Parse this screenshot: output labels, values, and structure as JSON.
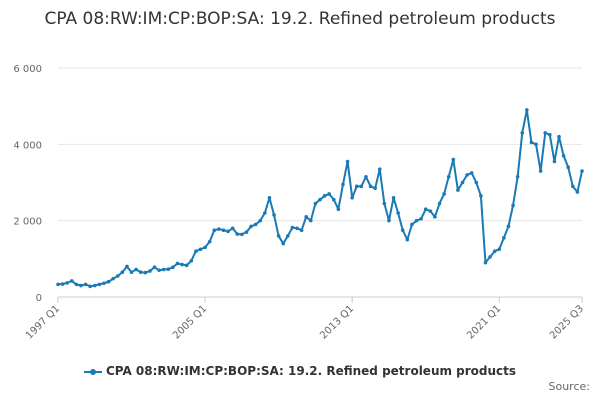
{
  "chart_data": {
    "type": "line",
    "title": "CPA 08:RW:IM:CP:BOP:SA: 19.2. Refined petroleum products",
    "xlabel": "",
    "ylabel": "",
    "ylim": [
      0,
      6000
    ],
    "yticks": [
      0,
      2000,
      4000,
      6000
    ],
    "ytick_labels": [
      "0",
      "2 000",
      "4 000",
      "6 000"
    ],
    "xtick_labels": [
      "1997 Q1",
      "2005 Q1",
      "2013 Q1",
      "2021 Q1",
      "2025 Q3"
    ],
    "xtick_indices": [
      0,
      32,
      64,
      96,
      114
    ],
    "grid": true,
    "legend_position": "bottom",
    "color": "#1a7ab5",
    "x": [
      "1997 Q1",
      "1997 Q2",
      "1997 Q3",
      "1997 Q4",
      "1998 Q1",
      "1998 Q2",
      "1998 Q3",
      "1998 Q4",
      "1999 Q1",
      "1999 Q2",
      "1999 Q3",
      "1999 Q4",
      "2000 Q1",
      "2000 Q2",
      "2000 Q3",
      "2000 Q4",
      "2001 Q1",
      "2001 Q2",
      "2001 Q3",
      "2001 Q4",
      "2002 Q1",
      "2002 Q2",
      "2002 Q3",
      "2002 Q4",
      "2003 Q1",
      "2003 Q2",
      "2003 Q3",
      "2003 Q4",
      "2004 Q1",
      "2004 Q2",
      "2004 Q3",
      "2004 Q4",
      "2005 Q1",
      "2005 Q2",
      "2005 Q3",
      "2005 Q4",
      "2006 Q1",
      "2006 Q2",
      "2006 Q3",
      "2006 Q4",
      "2007 Q1",
      "2007 Q2",
      "2007 Q3",
      "2007 Q4",
      "2008 Q1",
      "2008 Q2",
      "2008 Q3",
      "2008 Q4",
      "2009 Q1",
      "2009 Q2",
      "2009 Q3",
      "2009 Q4",
      "2010 Q1",
      "2010 Q2",
      "2010 Q3",
      "2010 Q4",
      "2011 Q1",
      "2011 Q2",
      "2011 Q3",
      "2011 Q4",
      "2012 Q1",
      "2012 Q2",
      "2012 Q3",
      "2012 Q4",
      "2013 Q1",
      "2013 Q2",
      "2013 Q3",
      "2013 Q4",
      "2014 Q1",
      "2014 Q2",
      "2014 Q3",
      "2014 Q4",
      "2015 Q1",
      "2015 Q2",
      "2015 Q3",
      "2015 Q4",
      "2016 Q1",
      "2016 Q2",
      "2016 Q3",
      "2016 Q4",
      "2017 Q1",
      "2017 Q2",
      "2017 Q3",
      "2017 Q4",
      "2018 Q1",
      "2018 Q2",
      "2018 Q3",
      "2018 Q4",
      "2019 Q1",
      "2019 Q2",
      "2019 Q3",
      "2019 Q4",
      "2020 Q1",
      "2020 Q2",
      "2020 Q3",
      "2020 Q4",
      "2021 Q1",
      "2021 Q2",
      "2021 Q3",
      "2021 Q4",
      "2022 Q1",
      "2022 Q2",
      "2022 Q3",
      "2022 Q4",
      "2023 Q1",
      "2023 Q2",
      "2023 Q3",
      "2023 Q4",
      "2024 Q1",
      "2024 Q2",
      "2024 Q3",
      "2024 Q4",
      "2025 Q1",
      "2025 Q2",
      "2025 Q3"
    ],
    "series": [
      {
        "name": "CPA 08:RW:IM:CP:BOP:SA: 19.2. Refined petroleum products",
        "values": [
          330,
          340,
          370,
          420,
          330,
          300,
          330,
          280,
          300,
          330,
          360,
          400,
          480,
          550,
          650,
          800,
          650,
          720,
          650,
          640,
          680,
          780,
          700,
          720,
          730,
          780,
          880,
          850,
          830,
          950,
          1200,
          1250,
          1300,
          1450,
          1750,
          1780,
          1750,
          1720,
          1800,
          1650,
          1640,
          1700,
          1850,
          1900,
          2000,
          2200,
          2600,
          2150,
          1600,
          1400,
          1600,
          1820,
          1800,
          1750,
          2100,
          2000,
          2450,
          2550,
          2650,
          2700,
          2550,
          2300,
          2950,
          3550,
          2600,
          2900,
          2900,
          3150,
          2900,
          2850,
          3350,
          2450,
          2000,
          2600,
          2200,
          1750,
          1500,
          1900,
          2000,
          2050,
          2300,
          2250,
          2100,
          2450,
          2700,
          3150,
          3600,
          2800,
          3000,
          3200,
          3250,
          3000,
          2650,
          900,
          1050,
          1200,
          1250,
          1550,
          1850,
          2400,
          3150,
          4300,
          4900,
          4050,
          4000,
          3300,
          4300,
          4250,
          3550,
          4200,
          3700,
          3400,
          2900,
          2750,
          3300
        ]
      }
    ]
  },
  "source_label": "Source:"
}
